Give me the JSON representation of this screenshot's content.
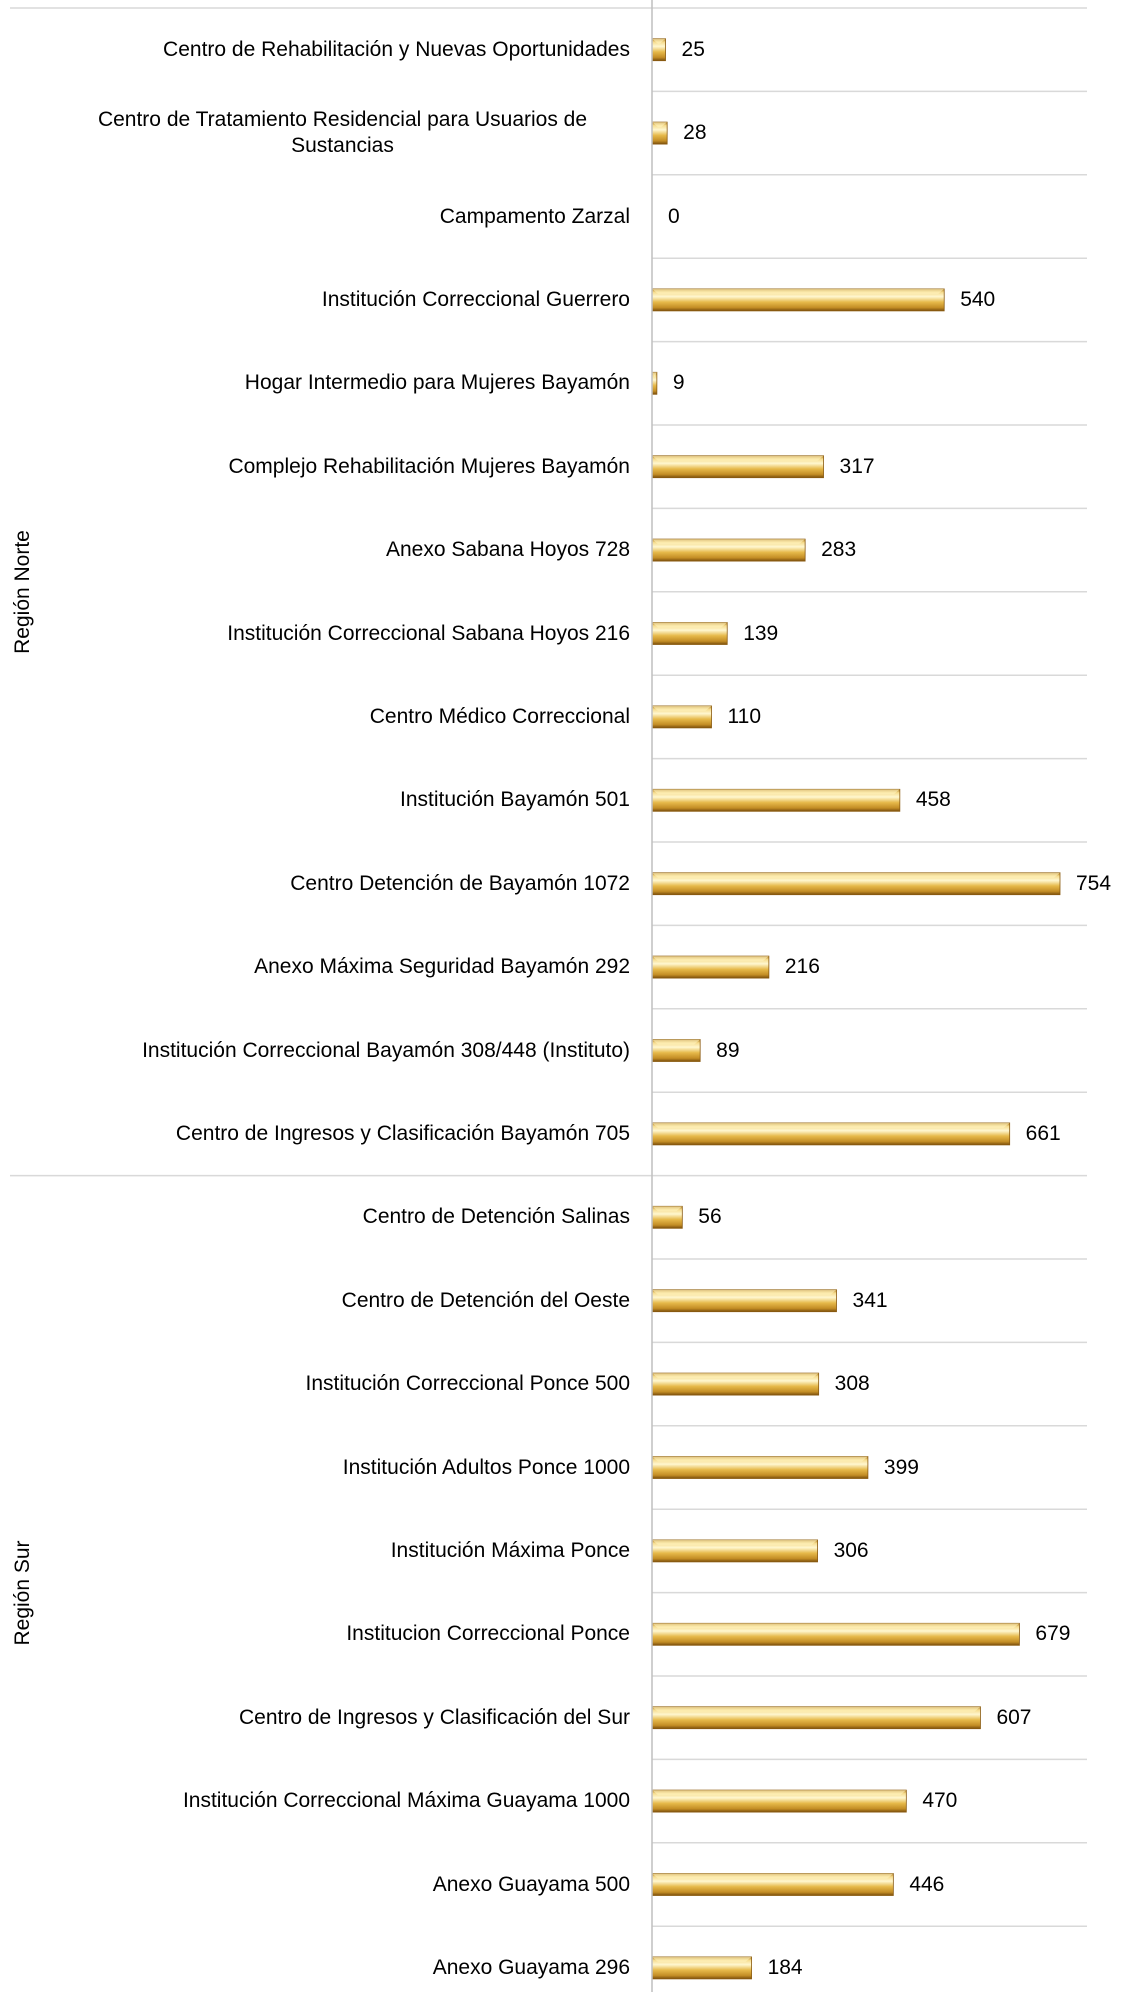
{
  "chart_data": {
    "type": "bar",
    "groups": [
      {
        "name": "Región Norte",
        "categories": [
          "Centro de Rehabilitación y Nuevas Oportunidades",
          "Centro de Tratamiento Residencial para Usuarios de Sustancias",
          "Campamento Zarzal",
          "Institución Correccional Guerrero",
          "Hogar Intermedio para Mujeres Bayamón",
          "Complejo Rehabilitación Mujeres Bayamón",
          "Anexo Sabana Hoyos 728",
          "Institución Correccional Sabana Hoyos  216",
          "Centro Médico Correccional",
          "Institución Bayamón 501",
          "Centro Detención de Bayamón 1072",
          "Anexo Máxima Seguridad Bayamón 292",
          "Institución Correccional Bayamón 308/448 (Instituto)",
          "Centro de Ingresos y Clasificación Bayamón 705"
        ],
        "values": [
          25,
          28,
          0,
          540,
          9,
          317,
          283,
          139,
          110,
          458,
          754,
          216,
          89,
          661
        ]
      },
      {
        "name": "Región Sur",
        "categories": [
          "Centro de Detención Salinas",
          "Centro de Detención del Oeste",
          "Institución Correccional Ponce 500",
          "Institución Adultos Ponce 1000",
          "Institución Máxima Ponce",
          "Institucion Correccional Ponce",
          "Centro de Ingresos y Clasificación del Sur",
          "Institución Correccional Máxima Guayama 1000",
          "Anexo Guayama 500",
          "Anexo Guayama 296"
        ],
        "values": [
          56,
          341,
          308,
          399,
          306,
          679,
          607,
          470,
          446,
          184
        ]
      }
    ],
    "color": "#d9a635"
  }
}
